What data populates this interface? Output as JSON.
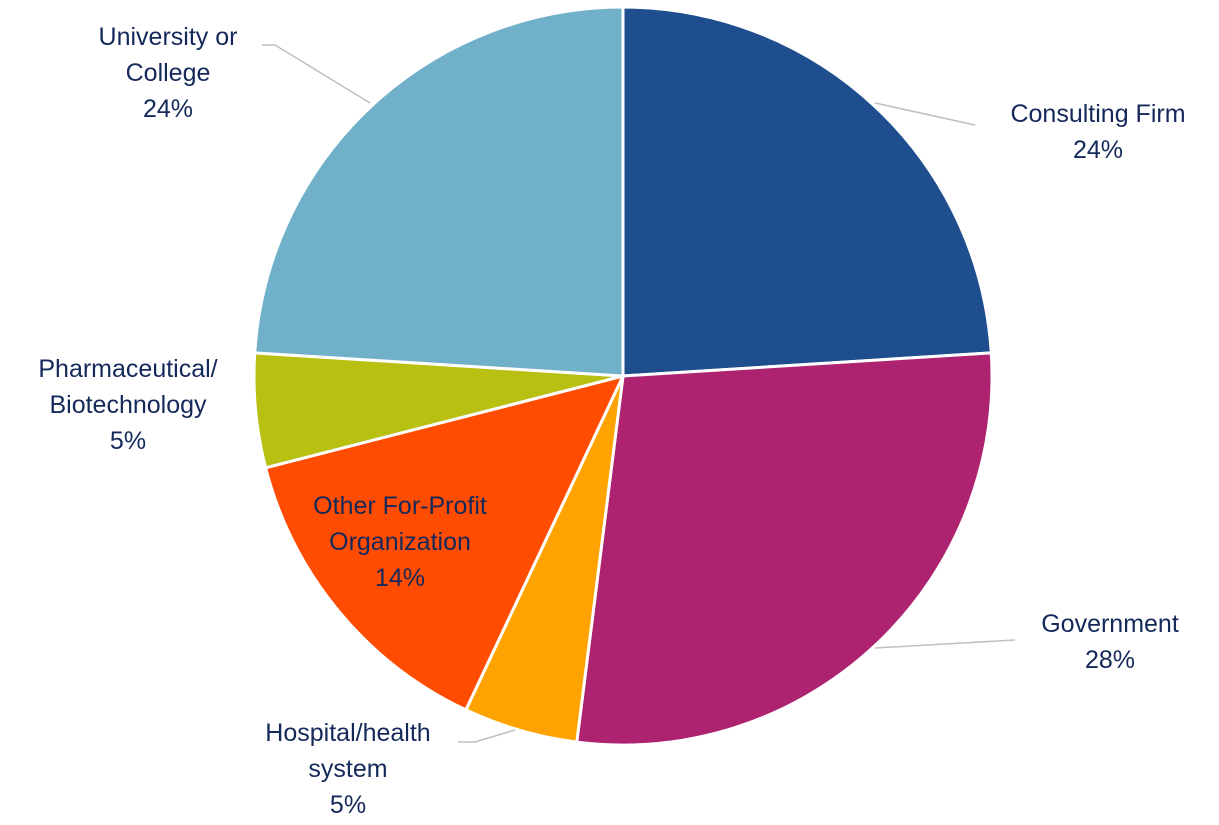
{
  "chart_data": {
    "type": "pie",
    "categories": [
      "Consulting Firm",
      "Government",
      "Hospital/health\nsystem",
      "Other For-Profit\nOrganization",
      "Pharmaceutical/\nBiotechnology",
      "University or\nCollege"
    ],
    "values": [
      24,
      28,
      5,
      14,
      5,
      24
    ],
    "value_labels": [
      "24%",
      "28%",
      "5%",
      "14%",
      "5%",
      "24%"
    ],
    "colors": [
      "#1f4e8f",
      "#ad2370",
      "#ffa300",
      "#ff4c00",
      "#b8c012",
      "#71b0c9"
    ]
  }
}
